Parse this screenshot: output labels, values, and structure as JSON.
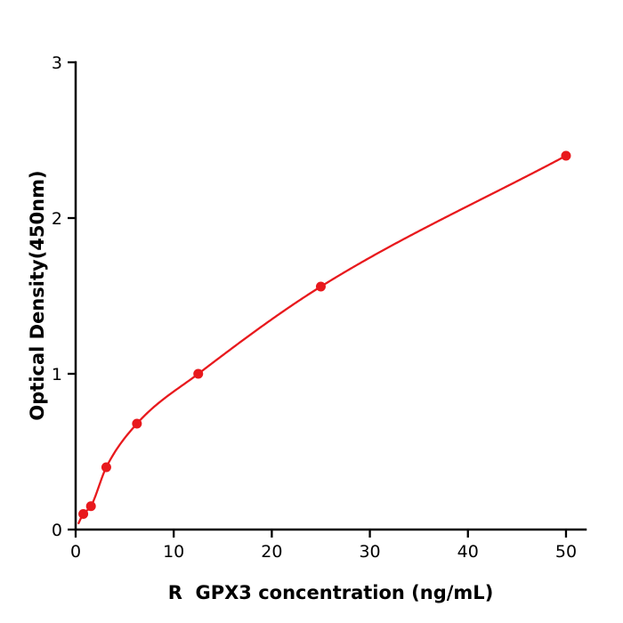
{
  "chart_data": {
    "type": "scatter",
    "title": "",
    "xlabel": "R  GPX3 concentration (ng/mL)",
    "ylabel": "Optical Density(450nm)",
    "x": [
      0.78,
      1.56,
      3.125,
      6.25,
      12.5,
      25,
      50
    ],
    "y": [
      0.1,
      0.15,
      0.4,
      0.68,
      1.0,
      1.56,
      2.4
    ],
    "xlim": [
      0,
      52
    ],
    "ylim": [
      0,
      3
    ],
    "x_ticks": [
      0,
      10,
      20,
      30,
      40,
      50
    ],
    "y_ticks": [
      0,
      1,
      2,
      3
    ],
    "marker_color": "#e8191d",
    "line_color": "#e8191d",
    "axis_color": "#000000",
    "background": "#ffffff",
    "grid": false,
    "legend": null,
    "trendline": {
      "type": "smooth-through-points",
      "start_x": 0.3,
      "end_x": 50
    }
  }
}
